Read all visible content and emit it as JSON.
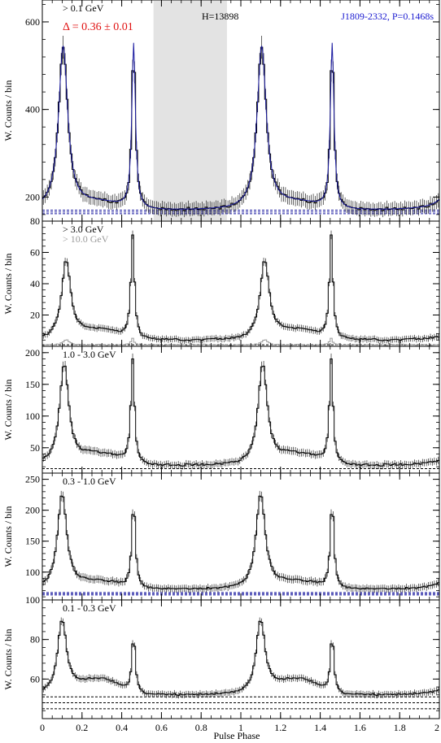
{
  "figure": {
    "xlabel": "Pulse Phase",
    "ylabel": "W. Counts / bin",
    "xlim": [
      0,
      2
    ],
    "x_ticks": [
      0,
      0.2,
      0.4,
      0.6,
      0.8,
      1,
      1.2,
      1.4,
      1.6,
      1.8,
      2
    ],
    "x_tick_labels": [
      "0",
      "0.2",
      "0.4",
      "0.6",
      "0.8",
      "1",
      "1.2",
      "1.4",
      "1.6",
      "1.8",
      "2"
    ],
    "colors": {
      "curve": "#000000",
      "fit": "#1a1aa0",
      "faint": "#9a9a9a",
      "annot_red": "#e01010",
      "annot_blue": "#1a1ad0",
      "shade": "#e3e3e3"
    }
  },
  "chart_data": [
    {
      "type": "line",
      "panel": "panel-1",
      "energy_label": "> 0.1 GeV",
      "delta_label": "Δ = 0.36 ± 0.01",
      "h_label": "H=13898",
      "pulsar_label": "J1809-2332, P=0.1468s",
      "ylim": [
        145,
        650
      ],
      "y_ticks": [
        200,
        400,
        600
      ],
      "y_tick_labels": [
        "200",
        "400",
        "600"
      ],
      "offpulse_region": [
        0.56,
        0.93
      ],
      "background_levels": [
        162,
        166,
        170
      ],
      "peak1": {
        "phase": 0.105,
        "value": 545
      },
      "peak2": {
        "phase": 0.46,
        "value": 550
      },
      "bridge_value": 190,
      "baseline": 170,
      "fit_overlay": true,
      "series": [
        {
          "values": []
        }
      ]
    },
    {
      "type": "line",
      "panel": "panel-2",
      "energy_label": "> 3.0 GeV",
      "energy_label_2": "> 10.0 GeV",
      "ylim": [
        0,
        80
      ],
      "y_ticks": [
        20,
        40,
        60,
        80
      ],
      "y_tick_labels": [
        "20",
        "40",
        "60",
        "80"
      ],
      "background_levels": [
        1
      ],
      "peak1": {
        "phase": 0.12,
        "value": 55
      },
      "peak2": {
        "phase": 0.455,
        "value": 70
      },
      "bridge_value": 12,
      "baseline": 4,
      "secondary_series": {
        "peak1": 4,
        "peak2": 5,
        "baseline": 0.8
      },
      "series": [
        {
          "values": []
        }
      ]
    },
    {
      "type": "line",
      "panel": "panel-3",
      "energy_label": "1.0 - 3.0 GeV",
      "ylim": [
        10,
        210
      ],
      "y_ticks": [
        50,
        100,
        150,
        200
      ],
      "y_tick_labels": [
        "50",
        "100",
        "150",
        "200"
      ],
      "background_levels": [
        17
      ],
      "peak1": {
        "phase": 0.11,
        "value": 183
      },
      "peak2": {
        "phase": 0.455,
        "value": 188
      },
      "bridge_value": 45,
      "baseline": 22,
      "series": [
        {
          "values": []
        }
      ]
    },
    {
      "type": "line",
      "panel": "panel-4",
      "energy_label": "0.3 - 1.0 GeV",
      "ylim": [
        55,
        260
      ],
      "y_ticks": [
        100,
        150,
        200,
        250
      ],
      "y_tick_labels": [
        "100",
        "150",
        "200",
        "250"
      ],
      "background_levels": [
        63,
        65,
        67
      ],
      "peak1": {
        "phase": 0.1,
        "value": 228
      },
      "peak2": {
        "phase": 0.46,
        "value": 215
      },
      "bridge_value": 88,
      "baseline": 72,
      "series": [
        {
          "values": []
        }
      ]
    },
    {
      "type": "line",
      "panel": "panel-5",
      "energy_label": "0.1 - 0.3 GeV",
      "ylim": [
        40,
        100
      ],
      "y_ticks": [
        60,
        80,
        100
      ],
      "y_tick_labels": [
        "60",
        "80",
        "100"
      ],
      "background_levels": [
        45,
        48,
        51
      ],
      "peak1": {
        "phase": 0.1,
        "value": 90
      },
      "peak2": {
        "phase": 0.46,
        "value": 82
      },
      "bridge_value": 62,
      "baseline": 52,
      "series": [
        {
          "values": []
        }
      ]
    }
  ]
}
